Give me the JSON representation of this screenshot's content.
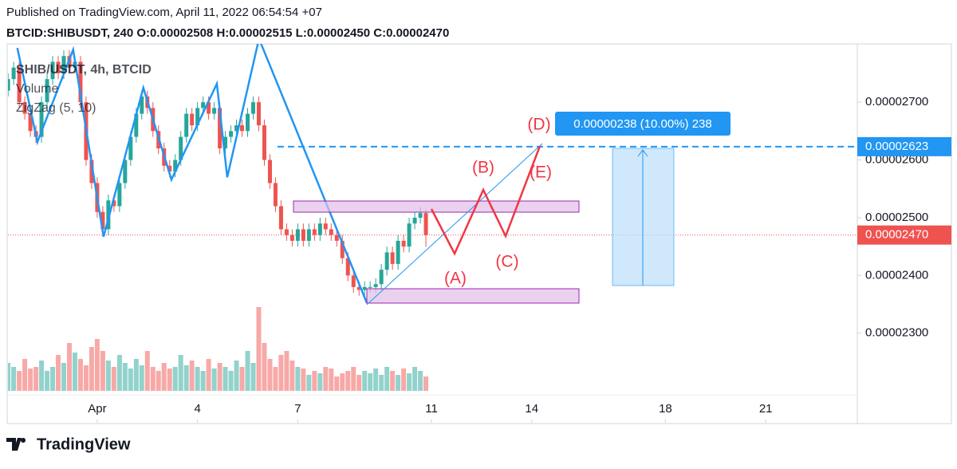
{
  "header": {
    "published": "Published on TradingView.com, April 11, 2022 06:54:54 +07",
    "symbol_line": "BTCID:SHIBUSDT, 240 O:0.00002508 H:0.00002515 L:0.00002450 C:0.00002470"
  },
  "chart_data": {
    "type": "candlestick",
    "legend": [
      "SHIB/USDT, 4h, BTCID",
      "Volume",
      "ZigZag (5, 10)"
    ],
    "x": [
      -1.667,
      -1.5,
      -1.333,
      -1.167,
      -1,
      -0.833,
      -0.667,
      -0.5,
      -0.333,
      -0.167,
      0,
      0.167,
      0.333,
      0.5,
      0.667,
      0.833,
      1,
      1.167,
      1.333,
      1.5,
      1.667,
      1.833,
      2,
      2.167,
      2.333,
      2.5,
      2.667,
      2.833,
      3,
      3.167,
      3.333,
      3.5,
      3.667,
      3.833,
      4,
      4.167,
      4.333,
      4.5,
      4.667,
      4.833,
      5,
      5.167,
      5.333,
      5.5,
      5.667,
      5.833,
      6,
      6.167,
      6.333,
      6.5,
      6.667,
      6.833,
      7,
      7.167,
      7.333,
      7.5,
      7.667,
      7.833,
      8,
      8.167,
      8.333,
      8.5,
      8.667,
      8.833,
      9,
      9.167,
      9.333,
      9.5,
      9.667,
      9.833,
      10,
      10.167,
      10.333,
      10.5,
      10.667,
      10.833
    ],
    "open": [
      2.72e-05,
      2.74e-05,
      2.76e-05,
      2.7e-05,
      2.68e-05,
      2.65e-05,
      2.64e-05,
      2.7e-05,
      2.74e-05,
      2.77e-05,
      2.75e-05,
      2.78e-05,
      2.76e-05,
      2.77e-05,
      2.7e-05,
      2.6e-05,
      2.56e-05,
      2.51e-05,
      2.48e-05,
      2.53e-05,
      2.52e-05,
      2.56e-05,
      2.6e-05,
      2.64e-05,
      2.68e-05,
      2.71e-05,
      2.69e-05,
      2.65e-05,
      2.62e-05,
      2.59e-05,
      2.58e-05,
      2.6e-05,
      2.64e-05,
      2.68e-05,
      2.66e-05,
      2.69e-05,
      2.7e-05,
      2.68e-05,
      2.69e-05,
      2.62e-05,
      2.64e-05,
      2.65e-05,
      2.66e-05,
      2.65e-05,
      2.68e-05,
      2.7e-05,
      2.66e-05,
      2.6e-05,
      2.56e-05,
      2.52e-05,
      2.48e-05,
      2.47e-05,
      2.46e-05,
      2.48e-05,
      2.46e-05,
      2.48e-05,
      2.47e-05,
      2.49e-05,
      2.48e-05,
      2.47e-05,
      2.46e-05,
      2.43e-05,
      2.4e-05,
      2.38e-05,
      2.375e-05,
      2.38e-05,
      2.38e-05,
      2.385e-05,
      2.41e-05,
      2.44e-05,
      2.42e-05,
      2.46e-05,
      2.45e-05,
      2.49e-05,
      2.5e-05,
      2.508e-05
    ],
    "high": [
      2.75e-05,
      2.77e-05,
      2.77e-05,
      2.71e-05,
      2.69e-05,
      2.66e-05,
      2.71e-05,
      2.75e-05,
      2.78e-05,
      2.78e-05,
      2.79e-05,
      2.79e-05,
      2.78e-05,
      2.78e-05,
      2.71e-05,
      2.61e-05,
      2.57e-05,
      2.52e-05,
      2.54e-05,
      2.54e-05,
      2.57e-05,
      2.61e-05,
      2.65e-05,
      2.69e-05,
      2.72e-05,
      2.72e-05,
      2.7e-05,
      2.66e-05,
      2.63e-05,
      2.6e-05,
      2.61e-05,
      2.65e-05,
      2.69e-05,
      2.69e-05,
      2.7e-05,
      2.71e-05,
      2.71e-05,
      2.7e-05,
      2.7e-05,
      2.65e-05,
      2.66e-05,
      2.67e-05,
      2.67e-05,
      2.69e-05,
      2.71e-05,
      2.71e-05,
      2.67e-05,
      2.61e-05,
      2.57e-05,
      2.53e-05,
      2.49e-05,
      2.48e-05,
      2.49e-05,
      2.49e-05,
      2.49e-05,
      2.49e-05,
      2.5e-05,
      2.5e-05,
      2.49e-05,
      2.48e-05,
      2.47e-05,
      2.44e-05,
      2.41e-05,
      2.39e-05,
      2.39e-05,
      2.39e-05,
      2.395e-05,
      2.42e-05,
      2.45e-05,
      2.45e-05,
      2.47e-05,
      2.47e-05,
      2.5e-05,
      2.51e-05,
      2.518e-05,
      2.515e-05
    ],
    "low": [
      2.71e-05,
      2.73e-05,
      2.69e-05,
      2.67e-05,
      2.64e-05,
      2.63e-05,
      2.63e-05,
      2.69e-05,
      2.73e-05,
      2.74e-05,
      2.74e-05,
      2.75e-05,
      2.75e-05,
      2.69e-05,
      2.59e-05,
      2.55e-05,
      2.5e-05,
      2.47e-05,
      2.47e-05,
      2.51e-05,
      2.51e-05,
      2.55e-05,
      2.59e-05,
      2.63e-05,
      2.67e-05,
      2.68e-05,
      2.64e-05,
      2.61e-05,
      2.58e-05,
      2.57e-05,
      2.57e-05,
      2.59e-05,
      2.63e-05,
      2.65e-05,
      2.65e-05,
      2.68e-05,
      2.67e-05,
      2.67e-05,
      2.61e-05,
      2.61e-05,
      2.63e-05,
      2.64e-05,
      2.64e-05,
      2.64e-05,
      2.67e-05,
      2.65e-05,
      2.59e-05,
      2.55e-05,
      2.51e-05,
      2.47e-05,
      2.46e-05,
      2.45e-05,
      2.45e-05,
      2.45e-05,
      2.45e-05,
      2.46e-05,
      2.46e-05,
      2.47e-05,
      2.46e-05,
      2.45e-05,
      2.42e-05,
      2.39e-05,
      2.37e-05,
      2.365e-05,
      2.365e-05,
      2.37e-05,
      2.37e-05,
      2.375e-05,
      2.4e-05,
      2.41e-05,
      2.41e-05,
      2.44e-05,
      2.44e-05,
      2.48e-05,
      2.49e-05,
      2.45e-05
    ],
    "close": [
      2.74e-05,
      2.76e-05,
      2.7e-05,
      2.68e-05,
      2.65e-05,
      2.64e-05,
      2.7e-05,
      2.74e-05,
      2.77e-05,
      2.75e-05,
      2.78e-05,
      2.76e-05,
      2.77e-05,
      2.7e-05,
      2.6e-05,
      2.56e-05,
      2.51e-05,
      2.48e-05,
      2.53e-05,
      2.52e-05,
      2.56e-05,
      2.6e-05,
      2.64e-05,
      2.68e-05,
      2.71e-05,
      2.69e-05,
      2.65e-05,
      2.62e-05,
      2.59e-05,
      2.58e-05,
      2.6e-05,
      2.64e-05,
      2.68e-05,
      2.66e-05,
      2.69e-05,
      2.7e-05,
      2.68e-05,
      2.69e-05,
      2.62e-05,
      2.64e-05,
      2.65e-05,
      2.66e-05,
      2.65e-05,
      2.68e-05,
      2.7e-05,
      2.66e-05,
      2.6e-05,
      2.56e-05,
      2.52e-05,
      2.48e-05,
      2.47e-05,
      2.46e-05,
      2.48e-05,
      2.46e-05,
      2.48e-05,
      2.47e-05,
      2.49e-05,
      2.48e-05,
      2.47e-05,
      2.46e-05,
      2.43e-05,
      2.4e-05,
      2.38e-05,
      2.375e-05,
      2.38e-05,
      2.38e-05,
      2.385e-05,
      2.41e-05,
      2.44e-05,
      2.42e-05,
      2.46e-05,
      2.45e-05,
      2.49e-05,
      2.5e-05,
      2.508e-05,
      2.47e-05
    ],
    "volume": [
      35,
      30,
      25,
      40,
      28,
      30,
      38,
      25,
      30,
      45,
      35,
      60,
      48,
      40,
      32,
      55,
      65,
      50,
      38,
      30,
      45,
      35,
      28,
      40,
      32,
      50,
      30,
      25,
      35,
      28,
      30,
      45,
      32,
      38,
      30,
      25,
      40,
      28,
      35,
      30,
      25,
      38,
      30,
      50,
      35,
      105,
      60,
      40,
      30,
      45,
      50,
      38,
      30,
      28,
      20,
      25,
      22,
      30,
      28,
      18,
      22,
      25,
      30,
      20,
      25,
      22,
      28,
      20,
      30,
      25,
      20,
      28,
      22,
      30,
      25,
      18
    ],
    "up_color": "#26a69a",
    "down_color": "#ef5350",
    "xlim": [
      -1.67,
      23.74
    ],
    "ylim": [
      2.145e-05,
      2.801e-05
    ],
    "xticks": [
      {
        "value": 1,
        "label": "Apr"
      },
      4,
      7,
      11,
      14,
      18,
      21
    ],
    "yticks": [
      {
        "value": 2.3e-05,
        "label": "0.00002300"
      },
      {
        "value": 2.4e-05,
        "label": "0.00002400"
      },
      {
        "value": 2.5e-05,
        "label": "0.00002500"
      },
      {
        "value": 2.6e-05,
        "label": "0.00002600"
      },
      {
        "value": 2.7e-05,
        "label": "0.00002700"
      }
    ],
    "zigzag": {
      "color": "#2196f3",
      "x": [
        -1.39,
        -0.79,
        0.28,
        1.19,
        2.38,
        3.22,
        4.58,
        4.89,
        5.84,
        9.07
      ],
      "values": [
        2.794e-05,
        2.631e-05,
        2.791e-05,
        2.467e-05,
        2.725e-05,
        2.566e-05,
        2.732e-05,
        2.57e-05,
        2.81e-05,
        2.352e-05
      ]
    },
    "price_lines": [
      {
        "value": 2.623e-05,
        "label": "0.00002623",
        "color": "#2196f3"
      },
      {
        "value": 2.47e-05,
        "label": "0.00002470",
        "color": "#ef5350"
      }
    ]
  },
  "drawings": {
    "range_label": "0.00000238 (10.00%) 238",
    "waves": [
      "(A)",
      "(B)",
      "(C)",
      "(D)",
      "(E)"
    ]
  },
  "footer": {
    "brand": "TradingView"
  }
}
